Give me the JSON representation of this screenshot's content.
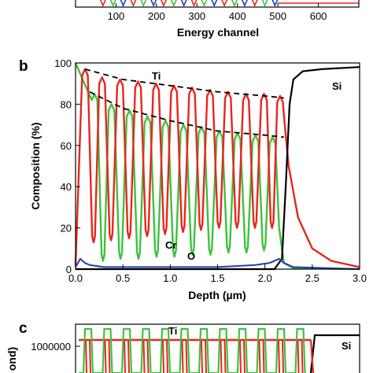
{
  "chart_data": [
    {
      "panel": "a",
      "type": "line",
      "xlabel": "Energy channel",
      "xlim": [
        0,
        700
      ],
      "xticks": [
        "100",
        "200",
        "300",
        "400",
        "500",
        "600"
      ],
      "series_colors": [
        "#e8261d",
        "#3dc23d",
        "#1f3fb5",
        "#000000"
      ]
    },
    {
      "panel": "b",
      "type": "line",
      "xlabel": "Depth (µm)",
      "ylabel": "Composition (%)",
      "xlim": [
        0,
        3.0
      ],
      "ylim": [
        0,
        100
      ],
      "xticks": [
        "0.0",
        "0.5",
        "1.0",
        "1.5",
        "2.0",
        "2.5",
        "3.0"
      ],
      "yticks": [
        "0",
        "20",
        "40",
        "60",
        "80",
        "100"
      ],
      "annotations": [
        "Ti",
        "Si",
        "Cr",
        "O"
      ],
      "colors": {
        "Ti": "#e8261d",
        "Cr": "#3dc23d",
        "O": "#1f3fb5",
        "Si": "#000000",
        "envelope": "#000000"
      },
      "series": [
        {
          "name": "Ti",
          "peaks_x": [
            0.1,
            0.28,
            0.47,
            0.66,
            0.85,
            1.04,
            1.23,
            1.42,
            1.61,
            1.8,
            1.99,
            2.16
          ],
          "peaks_y": [
            97,
            93,
            92,
            91,
            90,
            89,
            88,
            87,
            86,
            85,
            85,
            84
          ],
          "minima_y": [
            13,
            14,
            15,
            16,
            17,
            18,
            19,
            20,
            20,
            20,
            20
          ]
        },
        {
          "name": "Cr",
          "peaks_x": [
            0.2,
            0.38,
            0.57,
            0.76,
            0.95,
            1.14,
            1.33,
            1.52,
            1.71,
            1.9,
            2.08
          ],
          "peaks_y": [
            85,
            80,
            77,
            74,
            72,
            70,
            69,
            67,
            66,
            65,
            64
          ],
          "minima_y": [
            4,
            5,
            5,
            6,
            6,
            7,
            7,
            8,
            8,
            9,
            9
          ]
        },
        {
          "name": "O",
          "x": [
            0,
            0.05,
            0.1,
            0.15,
            0.3,
            0.6,
            1.0,
            1.5,
            1.9,
            2.05,
            2.15,
            2.2,
            2.3,
            3.0
          ],
          "y": [
            1,
            5,
            3,
            2,
            1,
            1,
            1,
            1,
            2,
            3,
            5,
            3,
            1,
            0
          ]
        },
        {
          "name": "Si",
          "x": [
            0,
            2.1,
            2.18,
            2.22,
            2.26,
            2.3,
            2.4,
            2.6,
            3.0
          ],
          "y": [
            0,
            0,
            5,
            40,
            80,
            92,
            96,
            97,
            98
          ]
        }
      ],
      "envelopes": [
        {
          "name": "Ti",
          "x": [
            0.1,
            0.5,
            1.0,
            1.5,
            2.0,
            2.2
          ],
          "y": [
            97,
            92,
            89,
            86,
            84,
            83
          ]
        },
        {
          "name": "Cr",
          "x": [
            0.15,
            0.5,
            1.0,
            1.5,
            2.0,
            2.2
          ],
          "y": [
            86,
            78,
            72,
            67,
            65,
            64
          ]
        }
      ]
    },
    {
      "panel": "c",
      "type": "line",
      "yticks": [
        "1000000"
      ],
      "ylabel_fragment": "ond)",
      "annotations": [
        "Ti",
        "Si"
      ],
      "colors": {
        "Ti": "#e8261d",
        "Cr": "#3dc23d",
        "Si": "#000000"
      }
    }
  ]
}
